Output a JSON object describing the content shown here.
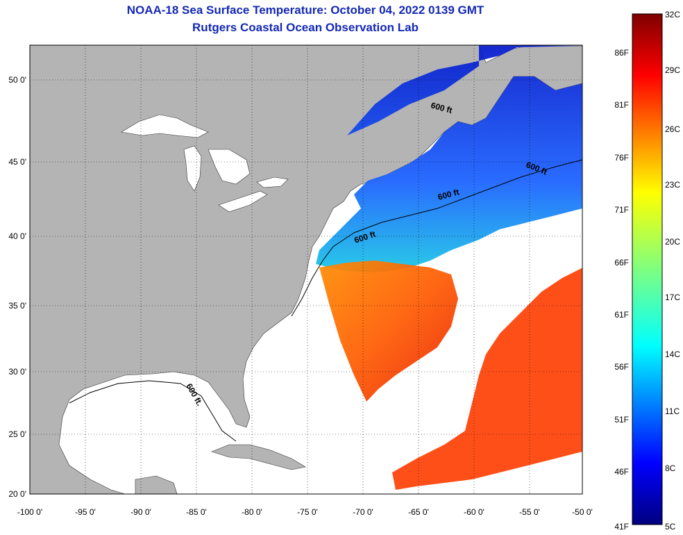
{
  "title": {
    "line1": "NOAA-18 Sea Surface Temperature:  October 04, 2022 0139 GMT",
    "line2": "Rutgers Coastal Ocean Observation Lab"
  },
  "map": {
    "lon_ticks": [
      "-100 0'",
      "-95 0'",
      "-90 0'",
      "-85 0'",
      "-80 0'",
      "-75 0'",
      "-70 0'",
      "-65 0'",
      "-60 0'",
      "-55 0'",
      "-50 0'"
    ],
    "lat_ticks": [
      "50 0'",
      "45 0'",
      "40 0'",
      "35 0'",
      "30 0'",
      "25 0'",
      "20 0'"
    ],
    "contour_labels": [
      "600 ft",
      "600 ft",
      "600 ft",
      "600 ft",
      "600 ft."
    ],
    "colors": {
      "land": "#b4b4b4",
      "nodata": "#ffffff",
      "title": "#1428b4"
    }
  },
  "colorbar": {
    "celsius": [
      "32C",
      "29C",
      "26C",
      "23C",
      "20C",
      "17C",
      "14C",
      "11C",
      "8C",
      "5C"
    ],
    "fahrenheit": [
      "86F",
      "81F",
      "76F",
      "71F",
      "66F",
      "61F",
      "56F",
      "51F",
      "46F",
      "41F"
    ]
  }
}
